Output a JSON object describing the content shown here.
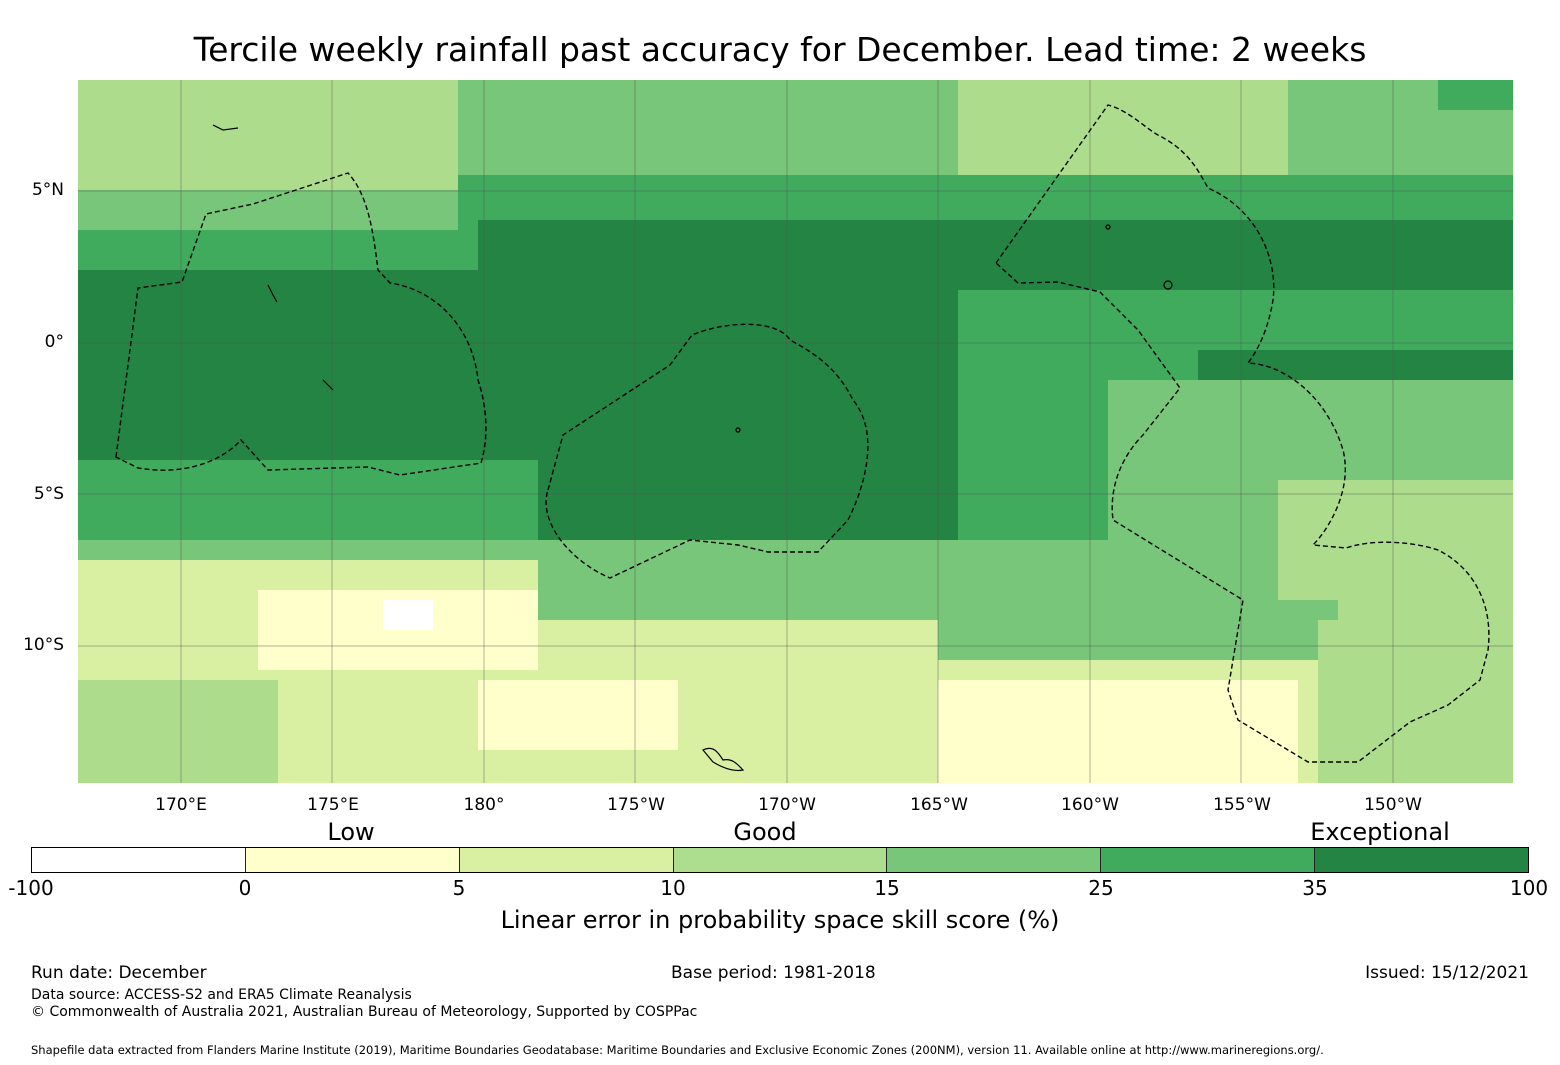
{
  "title": "Tercile weekly rainfall past accuracy for December. Lead time: 2 weeks",
  "map": {
    "lat_labels": [
      "5°N",
      "0°",
      "5°S",
      "10°S"
    ],
    "lon_labels": [
      "170°E",
      "175°E",
      "180°",
      "175°W",
      "170°W",
      "165°W",
      "160°W",
      "155°W",
      "150°W"
    ],
    "bands_colors": {
      "very_light": "#ffffcc",
      "light": "#d9f0a3",
      "medium": "#addd8e",
      "mid_green": "#78c679",
      "green": "#41ab5d",
      "dark_green": "#238443"
    }
  },
  "legend": {
    "category_labels": [
      "Low",
      "Good",
      "Exceptional"
    ],
    "tick_labels": [
      "-100",
      "0",
      "5",
      "10",
      "15",
      "25",
      "35",
      "100"
    ],
    "colors": [
      "#ffffff",
      "#ffffcc",
      "#d9f0a3",
      "#addd8e",
      "#78c679",
      "#41ab5d",
      "#238443"
    ],
    "title": "Linear error in probability space skill score (%)"
  },
  "footer": {
    "run_date": "Run date: December",
    "base_period": "Base period: 1981-2018",
    "issued": "Issued: 15/12/2021",
    "data_source": "Data source: ACCESS-S2 and ERA5 Climate Reanalysis",
    "copyright": "© Commonwealth of Australia 2021, Australian Bureau of Meteorology, Supported by COSPPac",
    "shapefile": "Shapefile data extracted from Flanders Marine Institute (2019), Maritime Boundaries Geodatabase: Maritime Boundaries and Exclusive Economic Zones (200NM), version 11. Available online at http://www.marineregions.org/."
  }
}
